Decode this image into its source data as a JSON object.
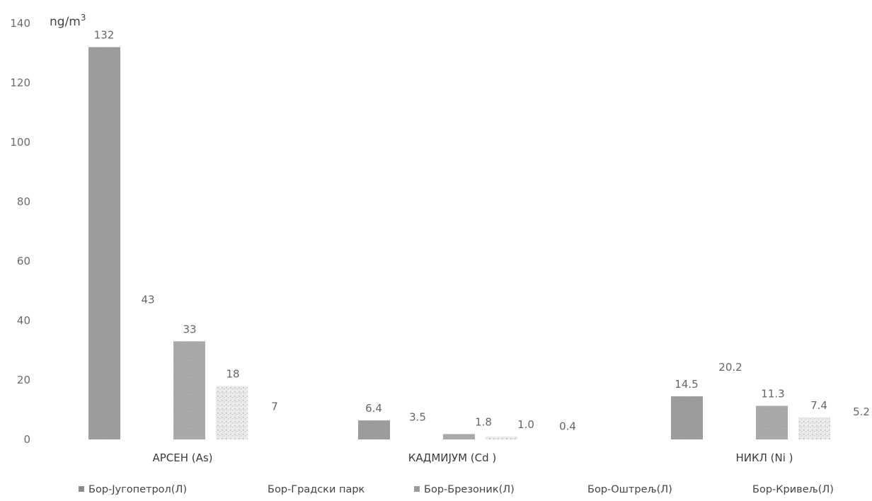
{
  "chart_data": {
    "type": "bar",
    "unit_label": "ng/m³",
    "categories": [
      "АРСЕН  (As)",
      "КАДМИЈУМ  (Cd )",
      "НИКЛ  (Ni )"
    ],
    "ylim": [
      0,
      140
    ],
    "yticks": [
      0,
      20,
      40,
      60,
      80,
      100,
      120,
      140
    ],
    "grid": false,
    "legend_position": "bottom",
    "series": [
      {
        "name": "Бор-Југопетрол(Л)",
        "values": [
          132,
          6.4,
          14.5
        ],
        "labels": [
          "132",
          "6.4",
          "14.5"
        ],
        "color": "#8c8c8c",
        "legend_marker": true
      },
      {
        "name": "Бор-Градски парк",
        "values": [
          43,
          3.5,
          20.2
        ],
        "labels": [
          "43",
          "3.5",
          "20.2"
        ],
        "color": "#ffffff",
        "legend_marker": false
      },
      {
        "name": "Бор-Брезоник(Л)",
        "values": [
          33,
          1.8,
          11.3
        ],
        "labels": [
          "33",
          "1.8",
          "11.3"
        ],
        "color": "#9b9b9b",
        "legend_marker": true
      },
      {
        "name": "Бор-Оштрељ(Л)",
        "values": [
          18,
          1.0,
          7.4
        ],
        "labels": [
          "18",
          "1.0",
          "7.4"
        ],
        "color": "#f2f2f2",
        "legend_marker": false
      },
      {
        "name": "Бор-Кривељ(Л)",
        "values": [
          7,
          0.4,
          5.2
        ],
        "labels": [
          "7",
          "0.4",
          "5.2"
        ],
        "color": "#ffffff",
        "legend_marker": false
      }
    ]
  }
}
